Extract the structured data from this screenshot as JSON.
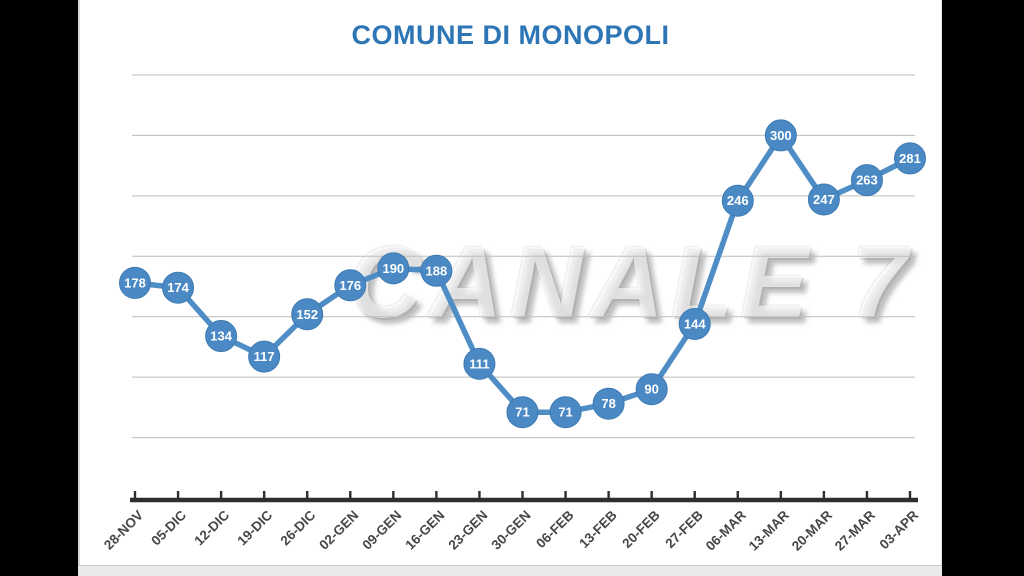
{
  "watermark": "CANALE 7",
  "colors": {
    "title": "#2E75B6",
    "marker_fill": "#4A89C4",
    "marker_ring": "#3D7AB3",
    "line": "#4E8DC6",
    "marker_label": "#FFFFFF",
    "gridline": "#BDBDBD",
    "axis": "#2E2E2E",
    "tick": "#2E2E2E",
    "tick_label": "#474747",
    "background": "#FFFFFF",
    "letterbox": "#000000"
  },
  "chart_data": {
    "type": "line",
    "title": "COMUNE DI MONOPOLI",
    "categories": [
      "28-NOV",
      "05-DIC",
      "12-DIC",
      "19-DIC",
      "26-DIC",
      "02-GEN",
      "09-GEN",
      "16-GEN",
      "23-GEN",
      "30-GEN",
      "06-FEB",
      "13-FEB",
      "20-FEB",
      "27-FEB",
      "06-MAR",
      "13-MAR",
      "20-MAR",
      "27-MAR",
      "03-APR"
    ],
    "values": [
      178,
      174,
      134,
      117,
      152,
      176,
      190,
      188,
      111,
      71,
      71,
      78,
      90,
      144,
      246,
      300,
      247,
      263,
      281
    ],
    "xlabel": "",
    "ylabel": "",
    "ylim": [
      0,
      350
    ],
    "gridline_step": 50,
    "grid": true,
    "legend": false,
    "y_axis_labels_visible": false,
    "marker_labels": true,
    "x_label_rotation_deg": -45
  }
}
